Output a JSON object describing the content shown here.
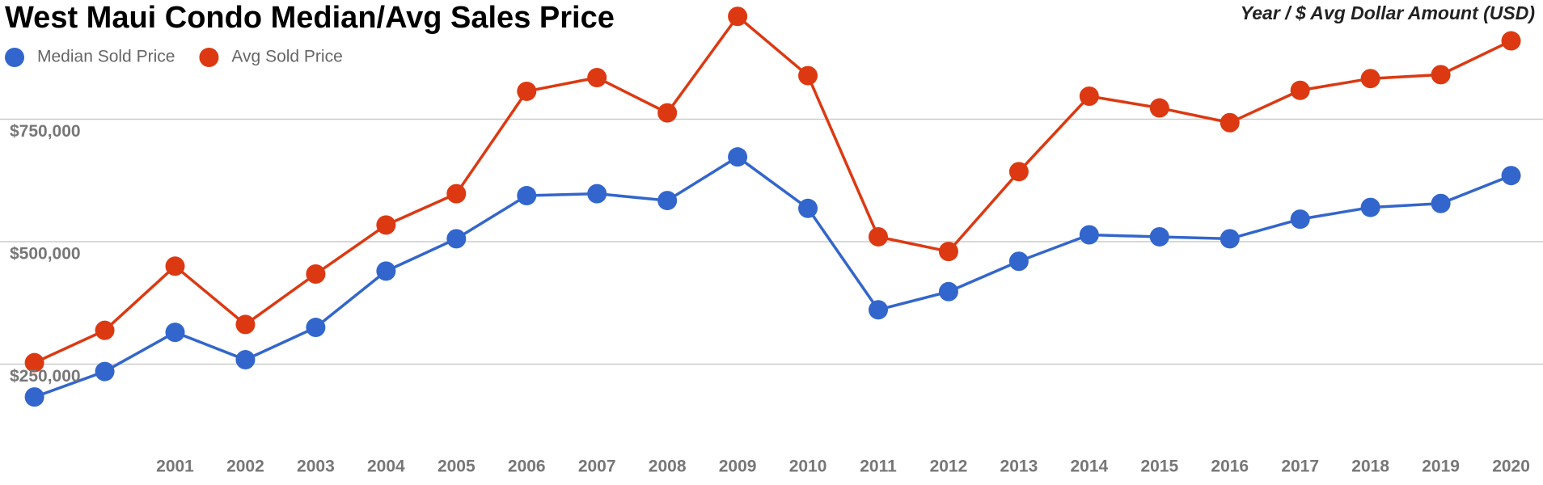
{
  "chart_data": {
    "type": "line",
    "title": "West Maui Condo Median/Avg Sales Price",
    "axis_title": "Year / $ Avg Dollar Amount (USD)",
    "categories": [
      null,
      null,
      "2001",
      "2002",
      "2003",
      "2004",
      "2005",
      "2006",
      "2007",
      "2008",
      "2009",
      "2010",
      "2011",
      "2012",
      "2013",
      "2014",
      "2015",
      "2016",
      "2017",
      "2018",
      "2019",
      "2020"
    ],
    "series": [
      {
        "name": "Median Sold Price",
        "color": "#3366cc",
        "values": [
          183000,
          235000,
          315000,
          259000,
          325000,
          440000,
          506000,
          594000,
          598000,
          584000,
          673000,
          568000,
          361000,
          398000,
          460000,
          514000,
          510000,
          506000,
          546000,
          570000,
          578000,
          635000
        ]
      },
      {
        "name": "Avg Sold Price",
        "color": "#dc3912",
        "values": [
          253000,
          319000,
          450000,
          331000,
          434000,
          534000,
          598000,
          807000,
          835000,
          763000,
          960000,
          839000,
          510000,
          480000,
          643000,
          797000,
          773000,
          743000,
          809000,
          833000,
          841000,
          910000
        ]
      }
    ],
    "ylim": [
      0,
      1000000
    ],
    "yticks": [
      {
        "value": 250000,
        "label": "$250,000"
      },
      {
        "value": 500000,
        "label": "$500,000"
      },
      {
        "value": 750000,
        "label": "$750,000"
      }
    ],
    "grid": true
  }
}
